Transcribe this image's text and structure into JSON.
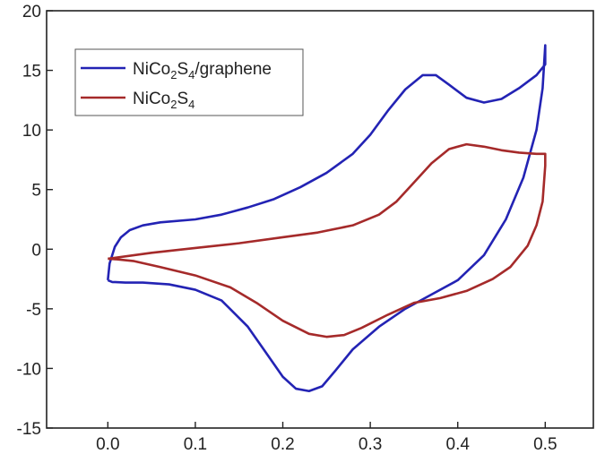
{
  "chart_data": {
    "type": "line",
    "title": "",
    "xlabel": "",
    "ylabel": "",
    "xlim": [
      -0.07,
      0.555
    ],
    "ylim": [
      -15,
      20
    ],
    "x_ticks": [
      {
        "value": 0.0,
        "label": "0.0"
      },
      {
        "value": 0.1,
        "label": "0.1"
      },
      {
        "value": 0.2,
        "label": "0.2"
      },
      {
        "value": 0.3,
        "label": "0.3"
      },
      {
        "value": 0.4,
        "label": "0.4"
      },
      {
        "value": 0.5,
        "label": "0.5"
      }
    ],
    "y_ticks": [
      {
        "value": -15,
        "label": "-15"
      },
      {
        "value": -10,
        "label": "-10"
      },
      {
        "value": -5,
        "label": "-5"
      },
      {
        "value": 0,
        "label": "0"
      },
      {
        "value": 5,
        "label": "5"
      },
      {
        "value": 10,
        "label": "10"
      },
      {
        "value": 15,
        "label": "15"
      },
      {
        "value": 20,
        "label": "20"
      }
    ],
    "grid": false,
    "legend": {
      "position": "top-left",
      "entries": [
        {
          "base": "NiCo",
          "sub1": "2",
          "mid": "S",
          "sub2": "4",
          "suffix": "/graphene"
        },
        {
          "base": "NiCo",
          "sub1": "2",
          "mid": "S",
          "sub2": "4",
          "suffix": ""
        }
      ]
    },
    "series": [
      {
        "name": "NiCo2S4/graphene",
        "color": "#2323b4",
        "points": [
          [
            0.0,
            -2.6
          ],
          [
            0.002,
            -1.2
          ],
          [
            0.008,
            0.2
          ],
          [
            0.015,
            1.0
          ],
          [
            0.025,
            1.6
          ],
          [
            0.04,
            2.0
          ],
          [
            0.06,
            2.25
          ],
          [
            0.1,
            2.5
          ],
          [
            0.13,
            2.9
          ],
          [
            0.16,
            3.5
          ],
          [
            0.19,
            4.2
          ],
          [
            0.22,
            5.2
          ],
          [
            0.25,
            6.4
          ],
          [
            0.28,
            8.0
          ],
          [
            0.3,
            9.6
          ],
          [
            0.32,
            11.6
          ],
          [
            0.34,
            13.4
          ],
          [
            0.36,
            14.6
          ],
          [
            0.375,
            14.6
          ],
          [
            0.39,
            13.8
          ],
          [
            0.41,
            12.7
          ],
          [
            0.43,
            12.3
          ],
          [
            0.45,
            12.6
          ],
          [
            0.47,
            13.5
          ],
          [
            0.49,
            14.6
          ],
          [
            0.5,
            15.5
          ],
          [
            0.5,
            17.1
          ],
          [
            0.497,
            13.5
          ],
          [
            0.49,
            10.0
          ],
          [
            0.475,
            6.0
          ],
          [
            0.455,
            2.5
          ],
          [
            0.43,
            -0.5
          ],
          [
            0.4,
            -2.6
          ],
          [
            0.37,
            -3.8
          ],
          [
            0.34,
            -5.0
          ],
          [
            0.31,
            -6.5
          ],
          [
            0.28,
            -8.4
          ],
          [
            0.26,
            -10.2
          ],
          [
            0.245,
            -11.5
          ],
          [
            0.23,
            -11.9
          ],
          [
            0.215,
            -11.7
          ],
          [
            0.2,
            -10.7
          ],
          [
            0.18,
            -8.6
          ],
          [
            0.16,
            -6.5
          ],
          [
            0.13,
            -4.3
          ],
          [
            0.1,
            -3.4
          ],
          [
            0.07,
            -2.95
          ],
          [
            0.04,
            -2.8
          ],
          [
            0.02,
            -2.8
          ],
          [
            0.005,
            -2.75
          ],
          [
            0.0,
            -2.6
          ]
        ]
      },
      {
        "name": "NiCo2S4",
        "color": "#a52a2a",
        "points": [
          [
            0.0,
            -0.8
          ],
          [
            0.05,
            -0.3
          ],
          [
            0.1,
            0.1
          ],
          [
            0.15,
            0.5
          ],
          [
            0.2,
            1.0
          ],
          [
            0.24,
            1.4
          ],
          [
            0.28,
            2.0
          ],
          [
            0.31,
            2.9
          ],
          [
            0.33,
            4.0
          ],
          [
            0.35,
            5.6
          ],
          [
            0.37,
            7.2
          ],
          [
            0.39,
            8.4
          ],
          [
            0.41,
            8.8
          ],
          [
            0.43,
            8.6
          ],
          [
            0.45,
            8.3
          ],
          [
            0.47,
            8.1
          ],
          [
            0.49,
            8.0
          ],
          [
            0.5,
            8.0
          ],
          [
            0.5,
            7.0
          ],
          [
            0.497,
            4.0
          ],
          [
            0.49,
            2.0
          ],
          [
            0.48,
            0.3
          ],
          [
            0.46,
            -1.5
          ],
          [
            0.44,
            -2.5
          ],
          [
            0.41,
            -3.5
          ],
          [
            0.38,
            -4.1
          ],
          [
            0.35,
            -4.5
          ],
          [
            0.32,
            -5.5
          ],
          [
            0.29,
            -6.6
          ],
          [
            0.27,
            -7.2
          ],
          [
            0.25,
            -7.35
          ],
          [
            0.23,
            -7.1
          ],
          [
            0.2,
            -6.0
          ],
          [
            0.17,
            -4.5
          ],
          [
            0.14,
            -3.2
          ],
          [
            0.1,
            -2.2
          ],
          [
            0.06,
            -1.5
          ],
          [
            0.03,
            -1.0
          ],
          [
            0.01,
            -0.85
          ],
          [
            0.0,
            -0.8
          ]
        ]
      }
    ]
  }
}
